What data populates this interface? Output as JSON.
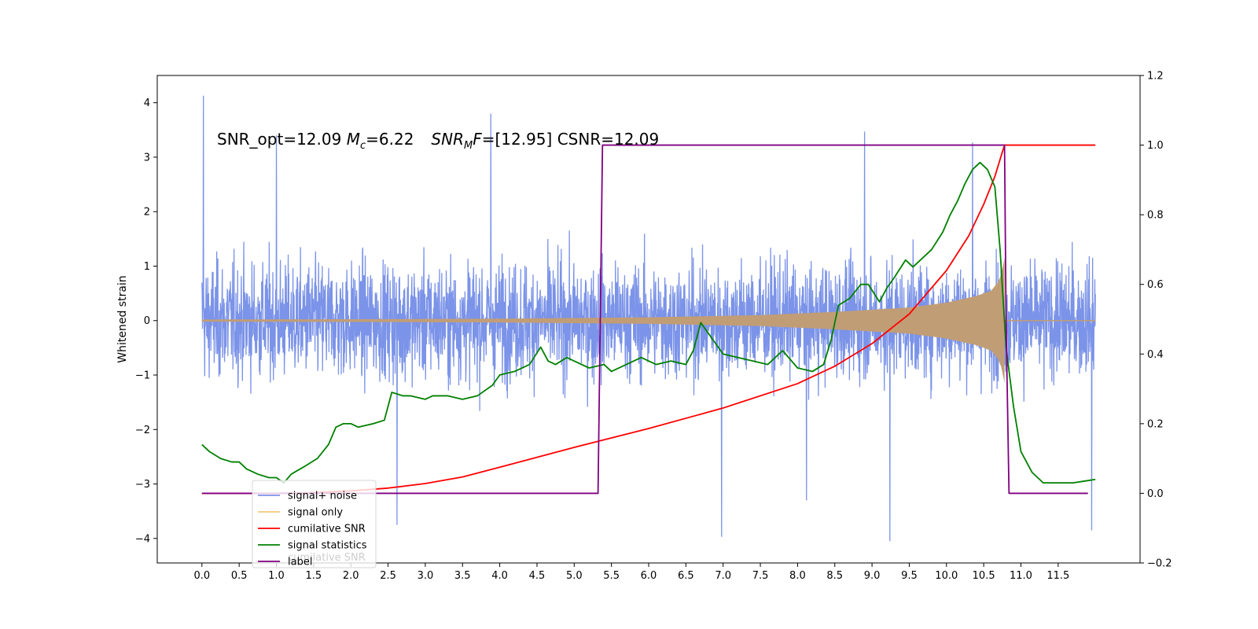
{
  "chart_data": {
    "type": "line",
    "ylabel_left": "Whitened strain",
    "xlim": [
      -0.6,
      12.6
    ],
    "ylim_left": [
      -4.45,
      4.5
    ],
    "ylim_right": [
      -0.2,
      1.2
    ],
    "x_ticks": [
      0.0,
      0.5,
      1.0,
      1.5,
      2.0,
      2.5,
      3.0,
      3.5,
      4.0,
      4.5,
      5.0,
      5.5,
      6.0,
      6.5,
      7.0,
      7.5,
      8.0,
      8.5,
      9.0,
      9.5,
      10.0,
      10.5,
      11.0,
      11.5
    ],
    "x_tick_labels": [
      "0.0",
      "0.5",
      "1.0",
      "1.5",
      "2.0",
      "2.5",
      "3.0",
      "3.5",
      "4.0",
      "4.5",
      "5.0",
      "5.5",
      "6.0",
      "6.5",
      "7.0",
      "7.5",
      "8.0",
      "8.5",
      "9.0",
      "9.5",
      "10.0",
      "10.5",
      "11.0",
      "11.5"
    ],
    "y_left_ticks": [
      4,
      3,
      2,
      1,
      0,
      -1,
      -2,
      -3,
      -4
    ],
    "y_left_tick_labels": [
      "4",
      "3",
      "2",
      "1",
      "0",
      "−1",
      "−2",
      "−3",
      "−4"
    ],
    "y_right_ticks": [
      1.2,
      1.0,
      0.8,
      0.6,
      0.4,
      0.2,
      0.0,
      -0.2
    ],
    "y_right_tick_labels": [
      "1.2",
      "1.0",
      "0.8",
      "0.6",
      "0.4",
      "0.2",
      "0.0",
      "−0.2"
    ],
    "annotation": {
      "prefix": "SNR_opt=12.09 ",
      "mc_symbol": "M",
      "mc_sub": "c",
      "mc_value": "=6.22",
      "snr_symbol": "SNR",
      "snr_sub": "M",
      "snr_suffix": "F",
      "snr_value": "=[12.95] CSNR=12.09"
    },
    "legend": {
      "location": "lower-left",
      "entries": [
        "signal+ noise",
        "signal only",
        "cumilative SNR",
        "signal statistics",
        "label"
      ],
      "hidden_text": "cumilative SNR"
    },
    "series": [
      {
        "name": "signal+ noise",
        "axis": "left",
        "color": "#7b93e8",
        "x_range": [
          0.0,
          12.0
        ],
        "amplitude_envelope": {
          "typical": 1.8,
          "peak_max": 4.13,
          "peak_min": -4.05
        },
        "notable_peaks": [
          [
            0.02,
            4.13
          ],
          [
            1.0,
            3.4
          ],
          [
            3.88,
            3.8
          ],
          [
            8.9,
            3.47
          ],
          [
            10.35,
            3.27
          ],
          [
            6.98,
            -3.97
          ],
          [
            9.24,
            -4.05
          ],
          [
            2.62,
            -3.75
          ],
          [
            11.95,
            -3.85
          ],
          [
            8.12,
            -3.3
          ]
        ]
      },
      {
        "name": "signal only",
        "axis": "left",
        "color": "#f5c87a",
        "fill_color": "#c19d76",
        "x_range": [
          0.0,
          12.0
        ],
        "envelope": {
          "x": [
            0.0,
            2.0,
            4.0,
            6.0,
            7.5,
            8.5,
            9.5,
            10.0,
            10.4,
            10.6,
            10.72,
            10.78
          ],
          "amp": [
            0.02,
            0.025,
            0.035,
            0.06,
            0.1,
            0.16,
            0.24,
            0.33,
            0.45,
            0.55,
            0.75,
            1.15
          ]
        },
        "chirp_end": 10.78
      },
      {
        "name": "cumilative SNR",
        "axis": "right",
        "color": "#ff0000",
        "x": [
          0.0,
          1.0,
          1.5,
          2.0,
          2.5,
          3.0,
          3.5,
          4.0,
          5.0,
          6.0,
          7.0,
          8.0,
          8.5,
          9.0,
          9.5,
          10.0,
          10.3,
          10.5,
          10.65,
          10.75,
          10.78,
          12.0
        ],
        "y": [
          0.0,
          0.0,
          0.002,
          0.007,
          0.015,
          0.028,
          0.047,
          0.075,
          0.132,
          0.186,
          0.245,
          0.315,
          0.365,
          0.43,
          0.515,
          0.64,
          0.74,
          0.83,
          0.91,
          0.98,
          1.0,
          1.0
        ]
      },
      {
        "name": "signal statistics",
        "axis": "right",
        "color": "#008000",
        "x": [
          0.0,
          0.1,
          0.25,
          0.4,
          0.5,
          0.6,
          0.75,
          0.9,
          1.0,
          1.1,
          1.2,
          1.4,
          1.55,
          1.7,
          1.8,
          1.9,
          2.0,
          2.1,
          2.3,
          2.45,
          2.55,
          2.7,
          2.8,
          3.0,
          3.1,
          3.3,
          3.5,
          3.7,
          3.9,
          4.0,
          4.2,
          4.4,
          4.55,
          4.65,
          4.75,
          4.9,
          5.0,
          5.2,
          5.4,
          5.5,
          5.7,
          5.9,
          6.1,
          6.3,
          6.5,
          6.6,
          6.7,
          6.8,
          6.9,
          7.0,
          7.2,
          7.4,
          7.6,
          7.8,
          8.0,
          8.2,
          8.35,
          8.45,
          8.55,
          8.7,
          8.85,
          8.95,
          9.1,
          9.2,
          9.3,
          9.45,
          9.55,
          9.7,
          9.8,
          9.95,
          10.05,
          10.15,
          10.25,
          10.35,
          10.45,
          10.55,
          10.65,
          10.72,
          10.8,
          10.9,
          11.0,
          11.15,
          11.3,
          11.5,
          11.7,
          11.85,
          12.0
        ],
        "y": [
          0.14,
          0.12,
          0.1,
          0.09,
          0.09,
          0.07,
          0.055,
          0.045,
          0.045,
          0.03,
          0.055,
          0.08,
          0.1,
          0.14,
          0.19,
          0.2,
          0.2,
          0.19,
          0.2,
          0.21,
          0.29,
          0.28,
          0.28,
          0.27,
          0.28,
          0.28,
          0.27,
          0.28,
          0.31,
          0.34,
          0.35,
          0.37,
          0.42,
          0.38,
          0.37,
          0.39,
          0.38,
          0.36,
          0.37,
          0.35,
          0.37,
          0.39,
          0.37,
          0.38,
          0.37,
          0.41,
          0.49,
          0.46,
          0.43,
          0.4,
          0.39,
          0.38,
          0.37,
          0.41,
          0.36,
          0.35,
          0.37,
          0.44,
          0.54,
          0.56,
          0.6,
          0.6,
          0.55,
          0.59,
          0.62,
          0.67,
          0.65,
          0.68,
          0.7,
          0.75,
          0.8,
          0.84,
          0.89,
          0.93,
          0.95,
          0.93,
          0.88,
          0.7,
          0.42,
          0.25,
          0.12,
          0.06,
          0.03,
          0.03,
          0.03,
          0.035,
          0.04
        ]
      },
      {
        "name": "label",
        "axis": "right",
        "color": "#800080",
        "x": [
          0.0,
          5.32,
          5.38,
          10.72,
          10.78,
          10.8,
          10.84,
          11.9
        ],
        "y": [
          0.0,
          0.0,
          1.0,
          1.0,
          1.0,
          0.5,
          0.0,
          0.0
        ]
      }
    ]
  }
}
